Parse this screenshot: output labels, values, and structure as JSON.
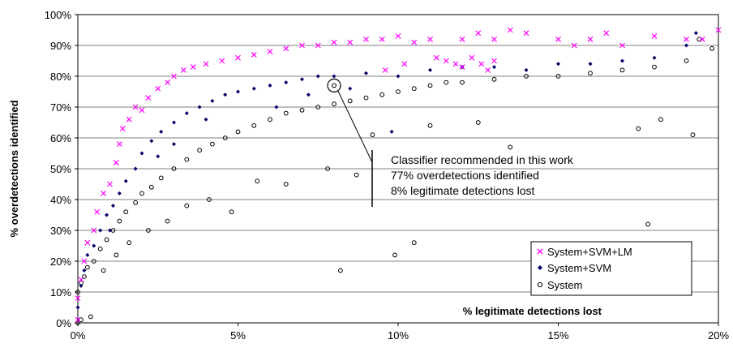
{
  "chart_data": {
    "type": "scatter",
    "xlabel": "% legitimate detections lost",
    "ylabel": "% overdetections identified",
    "xlim": [
      0,
      20
    ],
    "ylim": [
      0,
      100
    ],
    "x_ticks": [
      "0%",
      "5%",
      "10%",
      "15%",
      "20%"
    ],
    "y_ticks": [
      "0%",
      "10%",
      "20%",
      "30%",
      "40%",
      "50%",
      "60%",
      "70%",
      "80%",
      "90%",
      "100%"
    ],
    "grid": "horizontal",
    "legend_position": "bottom-right",
    "series": [
      {
        "name": "System+SVM+LM",
        "marker": "x",
        "color": "#ff00ff",
        "points": [
          [
            0.0,
            1
          ],
          [
            0.0,
            8
          ],
          [
            0.1,
            14
          ],
          [
            0.2,
            20
          ],
          [
            0.3,
            26
          ],
          [
            0.5,
            30
          ],
          [
            0.6,
            36
          ],
          [
            0.8,
            42
          ],
          [
            1.0,
            45
          ],
          [
            1.2,
            52
          ],
          [
            1.3,
            58
          ],
          [
            1.4,
            63
          ],
          [
            1.6,
            66
          ],
          [
            1.8,
            70
          ],
          [
            2.0,
            69
          ],
          [
            2.2,
            73
          ],
          [
            2.5,
            76
          ],
          [
            2.8,
            78
          ],
          [
            3.0,
            80
          ],
          [
            3.3,
            82
          ],
          [
            3.6,
            83
          ],
          [
            4.0,
            84
          ],
          [
            4.5,
            85
          ],
          [
            5.0,
            86
          ],
          [
            5.5,
            87
          ],
          [
            6.0,
            88
          ],
          [
            6.5,
            89
          ],
          [
            7.0,
            90
          ],
          [
            7.5,
            90
          ],
          [
            8.0,
            91
          ],
          [
            8.5,
            91
          ],
          [
            9.0,
            92
          ],
          [
            9.5,
            92
          ],
          [
            10.0,
            93
          ],
          [
            10.5,
            91
          ],
          [
            11.0,
            92
          ],
          [
            12.0,
            92
          ],
          [
            12.5,
            94
          ],
          [
            13.0,
            92
          ],
          [
            13.5,
            95
          ],
          [
            14.0,
            94
          ],
          [
            15.0,
            92
          ],
          [
            15.5,
            90
          ],
          [
            16.0,
            92
          ],
          [
            16.5,
            94
          ],
          [
            17.0,
            90
          ],
          [
            18.0,
            93
          ],
          [
            19.0,
            92
          ],
          [
            19.5,
            92
          ],
          [
            20.0,
            95
          ],
          [
            9.6,
            82
          ],
          [
            10.2,
            84
          ],
          [
            11.5,
            85
          ],
          [
            12.0,
            83
          ],
          [
            12.3,
            86
          ],
          [
            12.6,
            84
          ],
          [
            13.0,
            85
          ],
          [
            12.8,
            82
          ],
          [
            11.8,
            84
          ],
          [
            11.2,
            86
          ]
        ]
      },
      {
        "name": "System+SVM",
        "marker": "diamond",
        "color": "#000066",
        "points": [
          [
            0.0,
            5
          ],
          [
            0.1,
            12
          ],
          [
            0.2,
            17
          ],
          [
            0.3,
            22
          ],
          [
            0.5,
            25
          ],
          [
            0.7,
            30
          ],
          [
            0.9,
            35
          ],
          [
            1.1,
            38
          ],
          [
            1.3,
            42
          ],
          [
            1.5,
            46
          ],
          [
            1.8,
            50
          ],
          [
            2.0,
            55
          ],
          [
            2.3,
            59
          ],
          [
            2.6,
            62
          ],
          [
            3.0,
            65
          ],
          [
            3.4,
            68
          ],
          [
            3.8,
            70
          ],
          [
            4.2,
            72
          ],
          [
            4.6,
            74
          ],
          [
            5.0,
            75
          ],
          [
            5.5,
            76
          ],
          [
            6.0,
            77
          ],
          [
            6.5,
            78
          ],
          [
            7.0,
            79
          ],
          [
            7.5,
            80
          ],
          [
            8.0,
            80
          ],
          [
            9.0,
            81
          ],
          [
            10.0,
            80
          ],
          [
            11.0,
            82
          ],
          [
            12.0,
            83
          ],
          [
            13.0,
            83
          ],
          [
            14.0,
            82
          ],
          [
            15.0,
            84
          ],
          [
            16.0,
            84
          ],
          [
            17.0,
            85
          ],
          [
            18.0,
            86
          ],
          [
            19.0,
            90
          ],
          [
            19.3,
            94
          ],
          [
            9.8,
            62
          ],
          [
            4.0,
            66
          ],
          [
            3.0,
            58
          ],
          [
            2.5,
            54
          ],
          [
            6.2,
            70
          ],
          [
            7.2,
            74
          ],
          [
            8.5,
            76
          ],
          [
            1.0,
            30
          ]
        ]
      },
      {
        "name": "System",
        "marker": "circle",
        "color": "#000000",
        "points": [
          [
            0.0,
            0
          ],
          [
            0.0,
            10
          ],
          [
            0.1,
            13
          ],
          [
            0.2,
            15
          ],
          [
            0.3,
            18
          ],
          [
            0.5,
            20
          ],
          [
            0.7,
            24
          ],
          [
            0.9,
            27
          ],
          [
            1.1,
            30
          ],
          [
            1.3,
            33
          ],
          [
            1.5,
            36
          ],
          [
            1.8,
            39
          ],
          [
            2.0,
            42
          ],
          [
            2.3,
            44
          ],
          [
            2.6,
            47
          ],
          [
            3.0,
            50
          ],
          [
            3.4,
            53
          ],
          [
            3.8,
            56
          ],
          [
            4.2,
            58
          ],
          [
            4.6,
            60
          ],
          [
            5.0,
            62
          ],
          [
            5.5,
            64
          ],
          [
            6.0,
            66
          ],
          [
            6.5,
            68
          ],
          [
            7.0,
            69
          ],
          [
            7.5,
            70
          ],
          [
            8.0,
            71
          ],
          [
            8.5,
            72
          ],
          [
            9.0,
            73
          ],
          [
            9.5,
            74
          ],
          [
            10.0,
            75
          ],
          [
            10.5,
            76
          ],
          [
            11.0,
            77
          ],
          [
            11.5,
            78
          ],
          [
            12.0,
            78
          ],
          [
            13.0,
            79
          ],
          [
            14.0,
            80
          ],
          [
            15.0,
            80
          ],
          [
            16.0,
            81
          ],
          [
            17.0,
            82
          ],
          [
            18.0,
            83
          ],
          [
            19.0,
            85
          ],
          [
            19.4,
            92
          ],
          [
            19.8,
            89
          ],
          [
            8.2,
            17
          ],
          [
            9.9,
            22
          ],
          [
            10.5,
            26
          ],
          [
            13.5,
            57
          ],
          [
            17.8,
            32
          ],
          [
            18.2,
            66
          ],
          [
            19.2,
            61
          ],
          [
            17.5,
            63
          ],
          [
            12.5,
            65
          ],
          [
            11.0,
            64
          ],
          [
            9.2,
            61
          ],
          [
            8.7,
            48
          ],
          [
            7.8,
            50
          ],
          [
            6.5,
            45
          ],
          [
            5.6,
            46
          ],
          [
            4.8,
            36
          ],
          [
            4.1,
            40
          ],
          [
            3.4,
            38
          ],
          [
            2.8,
            33
          ],
          [
            2.2,
            30
          ],
          [
            1.6,
            26
          ],
          [
            1.2,
            22
          ],
          [
            0.8,
            17
          ],
          [
            0.4,
            2
          ],
          [
            0.1,
            1
          ]
        ]
      }
    ],
    "annotation": {
      "lines": [
        "Classifier recommended in this work",
        "77% overdetections identified",
        "8% legitimate detections lost"
      ],
      "point": [
        8.0,
        77
      ]
    }
  }
}
